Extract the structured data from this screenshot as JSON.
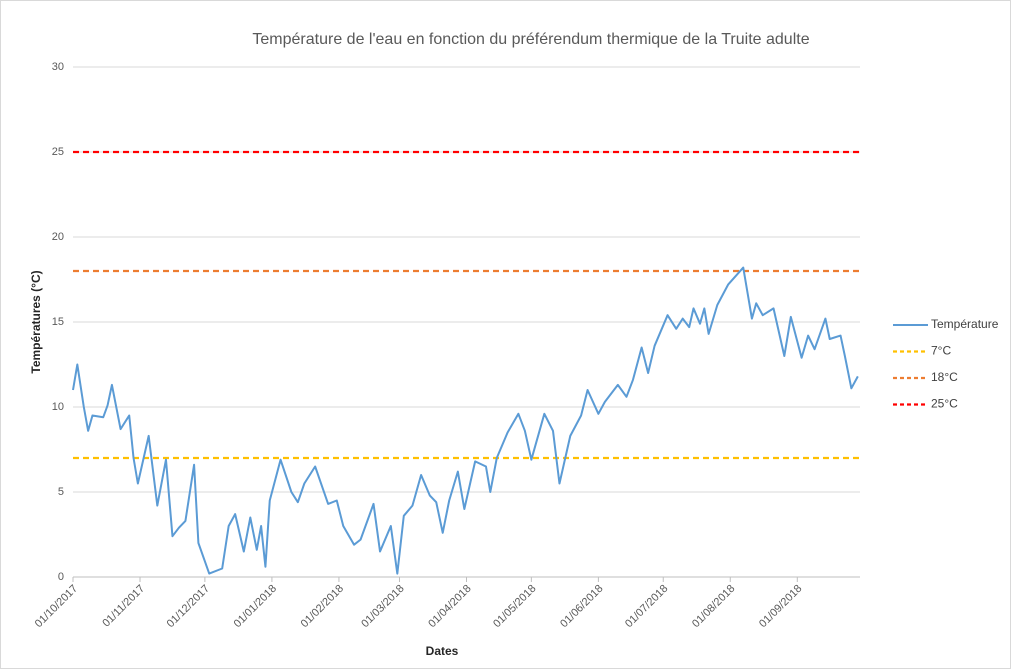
{
  "chart_data": {
    "type": "line",
    "title": "Température de l'eau en fonction du préférendum thermique de la Truite adulte",
    "x_label": "Dates",
    "y_label": "Températures (°C)",
    "x": [
      "01/10/2017",
      "03/10/2017",
      "06/10/2017",
      "08/10/2017",
      "10/10/2017",
      "15/10/2017",
      "17/10/2017",
      "19/10/2017",
      "23/10/2017",
      "27/10/2017",
      "29/10/2017",
      "31/10/2017",
      "05/11/2017",
      "09/11/2017",
      "13/11/2017",
      "16/11/2017",
      "19/11/2017",
      "22/11/2017",
      "26/11/2017",
      "28/11/2017",
      "03/12/2017",
      "09/12/2017",
      "12/12/2017",
      "15/12/2017",
      "19/12/2017",
      "22/12/2017",
      "25/12/2017",
      "27/12/2017",
      "29/12/2017",
      "31/12/2017",
      "05/01/2018",
      "10/01/2018",
      "13/01/2018",
      "16/01/2018",
      "21/01/2018",
      "27/01/2018",
      "31/01/2018",
      "03/02/2018",
      "08/02/2018",
      "11/02/2018",
      "17/02/2018",
      "20/02/2018",
      "25/02/2018",
      "28/02/2018",
      "03/03/2018",
      "07/03/2018",
      "11/03/2018",
      "15/03/2018",
      "18/03/2018",
      "21/03/2018",
      "24/03/2018",
      "28/03/2018",
      "31/03/2018",
      "05/04/2018",
      "10/04/2018",
      "12/04/2018",
      "15/04/2018",
      "20/04/2018",
      "25/04/2018",
      "28/04/2018",
      "01/05/2018",
      "07/05/2018",
      "11/05/2018",
      "14/05/2018",
      "19/05/2018",
      "24/05/2018",
      "27/05/2018",
      "01/06/2018",
      "04/06/2018",
      "10/06/2018",
      "14/06/2018",
      "17/06/2018",
      "21/06/2018",
      "24/06/2018",
      "27/06/2018",
      "03/07/2018",
      "07/07/2018",
      "10/07/2018",
      "13/07/2018",
      "15/07/2018",
      "18/07/2018",
      "20/07/2018",
      "22/07/2018",
      "26/07/2018",
      "31/07/2018",
      "07/08/2018",
      "11/08/2018",
      "13/08/2018",
      "16/08/2018",
      "21/08/2018",
      "26/08/2018",
      "29/08/2018",
      "03/09/2018",
      "06/09/2018",
      "09/09/2018",
      "14/09/2018",
      "16/09/2018",
      "21/09/2018",
      "23/09/2018",
      "26/09/2018",
      "29/09/2018"
    ],
    "series": [
      {
        "name": "Température",
        "color": "#5b9bd5",
        "values": [
          11.0,
          12.5,
          10.0,
          8.6,
          9.5,
          9.4,
          10.1,
          11.3,
          8.7,
          9.5,
          7.0,
          5.5,
          8.3,
          4.2,
          6.9,
          2.4,
          2.9,
          3.3,
          6.6,
          2.0,
          0.2,
          0.5,
          3.0,
          3.7,
          1.5,
          3.5,
          1.6,
          3.0,
          0.6,
          4.5,
          6.9,
          5.0,
          4.4,
          5.5,
          6.5,
          4.3,
          4.5,
          3.0,
          1.9,
          2.2,
          4.3,
          1.5,
          3.0,
          0.2,
          3.6,
          4.2,
          6.0,
          4.8,
          4.4,
          2.6,
          4.5,
          6.2,
          4.0,
          6.8,
          6.5,
          5.0,
          7.0,
          8.5,
          9.6,
          8.6,
          6.9,
          9.6,
          8.6,
          5.5,
          8.3,
          9.5,
          11.0,
          9.6,
          10.3,
          11.3,
          10.6,
          11.6,
          13.5,
          12.0,
          13.6,
          15.4,
          14.6,
          15.2,
          14.7,
          15.8,
          14.9,
          15.8,
          14.3,
          16.0,
          17.2,
          18.2,
          15.2,
          16.1,
          15.4,
          15.8,
          13.0,
          15.3,
          12.9,
          14.2,
          13.4,
          15.2,
          14.0,
          14.2,
          13.0,
          11.1,
          11.8
        ]
      }
    ],
    "hlines": [
      {
        "name": "7°C",
        "value": 7,
        "color": "#ffc000"
      },
      {
        "name": "18°C",
        "value": 18,
        "color": "#ed7d31"
      },
      {
        "name": "25°C",
        "value": 25,
        "color": "#ff0000"
      }
    ],
    "xlim": [
      "01/10/2017",
      "30/09/2018"
    ],
    "xticks": [
      "01/10/2017",
      "01/11/2017",
      "01/12/2017",
      "01/01/2018",
      "01/02/2018",
      "01/03/2018",
      "01/04/2018",
      "01/05/2018",
      "01/06/2018",
      "01/07/2018",
      "01/08/2018",
      "01/09/2018"
    ],
    "ylim": [
      0,
      30
    ],
    "yticks": [
      0,
      5,
      10,
      15,
      20,
      25,
      30
    ],
    "grid": true
  }
}
